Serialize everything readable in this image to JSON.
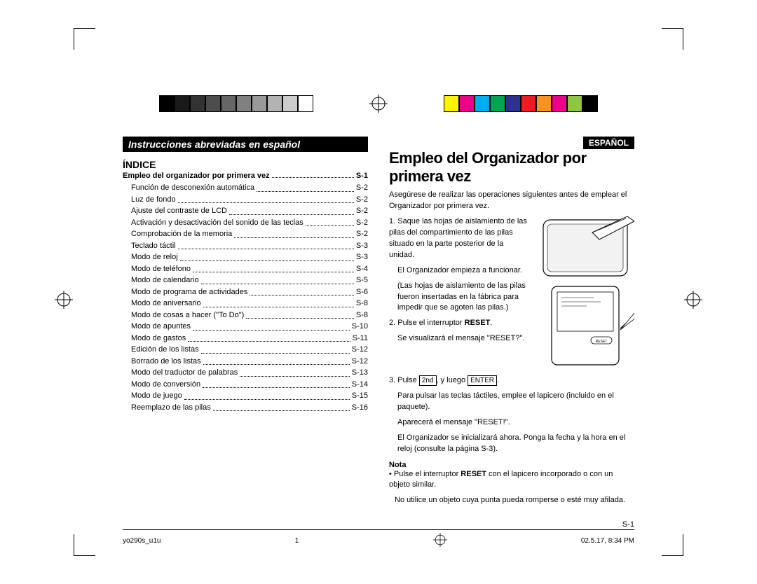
{
  "grayscale_swatches": [
    "#000000",
    "#1a1a1a",
    "#333333",
    "#4d4d4d",
    "#666666",
    "#808080",
    "#999999",
    "#b3b3b3",
    "#cccccc",
    "#ffffff"
  ],
  "color_swatches": [
    "#fff200",
    "#ec008c",
    "#00aeef",
    "#00a651",
    "#2e3192",
    "#ed1c24",
    "#f7941d",
    "#ec008c",
    "#8dc63f",
    "#000000"
  ],
  "left": {
    "banner": "Instrucciones abreviadas en español",
    "indice": "ÍNDICE",
    "toc_title": "Empleo del organizador por primera vez",
    "toc_title_pg": "S-1",
    "toc": [
      {
        "label": "Función de desconexión automática",
        "pg": "S-2"
      },
      {
        "label": "Luz de fondo",
        "pg": "S-2"
      },
      {
        "label": "Ajuste del contraste de LCD",
        "pg": "S-2"
      },
      {
        "label": "Activación y desactivación del sonido de las teclas",
        "pg": "S-2"
      },
      {
        "label": "Comprobación de la memoria",
        "pg": "S-2"
      },
      {
        "label": "Teclado táctil",
        "pg": "S-3"
      },
      {
        "label": "Modo de reloj",
        "pg": "S-3"
      },
      {
        "label": "Modo de teléfono",
        "pg": "S-4"
      },
      {
        "label": "Modo de calendario",
        "pg": "S-5"
      },
      {
        "label": "Modo de programa de actividades",
        "pg": "S-6"
      },
      {
        "label": "Modo de aniversario",
        "pg": "S-8"
      },
      {
        "label": "Modo de cosas a hacer (\"To Do\")",
        "pg": "S-8"
      },
      {
        "label": "Modo de apuntes",
        "pg": "S-10"
      },
      {
        "label": "Modo de gastos",
        "pg": "S-11"
      },
      {
        "label": "Edición de los listas",
        "pg": "S-12"
      },
      {
        "label": "Borrado de los listas",
        "pg": "S-12"
      },
      {
        "label": "Modo del traductor de palabras",
        "pg": "S-13"
      },
      {
        "label": "Modo de conversión",
        "pg": "S-14"
      },
      {
        "label": "Modo de juego",
        "pg": "S-15"
      },
      {
        "label": "Reemplazo de las pilas",
        "pg": "S-16"
      }
    ]
  },
  "right": {
    "lang": "ESPAÑOL",
    "title": "Empleo del Organizador por primera vez",
    "intro": "Asegúrese de realizar las operaciones siguientes antes de emplear el Organizador por primera vez.",
    "step1_a": "1. Saque las hojas de aislamiento de las pilas del compartimiento de las pilas situado en la parte posterior de la unidad.",
    "step1_b": "El Organizador empieza a funcionar.",
    "step1_c": "(Las hojas de aislamiento de las pilas fueron insertadas en la fábrica para impedir que se agoten las pilas.)",
    "step2_a_pre": "2. Pulse el interruptor ",
    "step2_a_bold": "RESET",
    "step2_a_post": ".",
    "step2_b": "Se visualizará el mensaje \"RESET?\".",
    "step3_pre": "3. Pulse ",
    "step3_k1": "2nd",
    "step3_mid": ", y luego ",
    "step3_k2": "ENTER",
    "step3_post": ".",
    "step3_b": "Para pulsar las teclas táctiles, emplee el lapicero (incluido en el paquete).",
    "step3_c": "Aparecerá el mensaje \"RESET!\".",
    "step3_d": "El Organizador se inicializará ahora. Ponga la fecha y la hora en el reloj (consulte la página S-3).",
    "nota": "Nota",
    "nota1_pre": "• Pulse el interruptor ",
    "nota1_bold": "RESET",
    "nota1_post": " con el lapicero incorporado o con un objeto similar.",
    "nota2": "No utilice un objeto cuya punta pueda romperse o esté muy afilada.",
    "pagenum": "S-1"
  },
  "footer": {
    "file": "yo290s_u1u",
    "page": "1",
    "date": "02.5.17, 8:34 PM"
  }
}
